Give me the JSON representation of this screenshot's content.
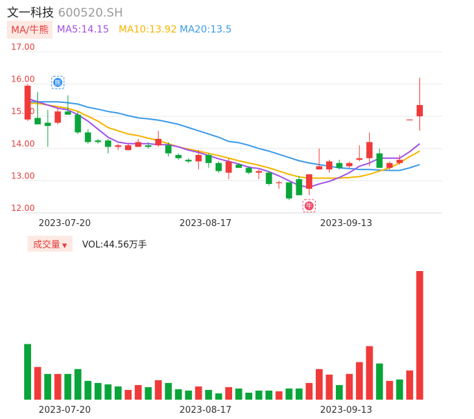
{
  "header": {
    "name": "文一科技",
    "code": "600520.SH"
  },
  "ma_bar": {
    "tag": "MA/牛熊",
    "ma5": "MA5:14.15",
    "ma10": "MA10:13.92",
    "ma20": "MA20:13.5"
  },
  "volume_bar": {
    "tag": "成交量",
    "label": "VOL:44.56万手"
  },
  "markers": {
    "bear": "熊",
    "bull": "牛"
  },
  "colors": {
    "up": "#f03a3a",
    "down": "#0aa53a",
    "ma5": "#a050e8",
    "ma10": "#f5b400",
    "ma20": "#3d9be9"
  },
  "chart_data": [
    {
      "type": "candlestick",
      "ylim": [
        12.0,
        17.0
      ],
      "yticks": [
        "17.00",
        "16.00",
        "15.00",
        "14.00",
        "13.00",
        "12.00"
      ],
      "xticks": [
        {
          "index": 3,
          "label": "2023-07-20"
        },
        {
          "index": 17,
          "label": "2023-08-17"
        },
        {
          "index": 31,
          "label": "2023-09-13"
        }
      ],
      "candles": [
        {
          "o": 14.9,
          "h": 16.0,
          "l": 14.85,
          "c": 15.95
        },
        {
          "o": 14.95,
          "h": 15.75,
          "l": 14.75,
          "c": 14.75
        },
        {
          "o": 14.8,
          "h": 15.2,
          "l": 14.05,
          "c": 14.7
        },
        {
          "o": 14.8,
          "h": 15.25,
          "l": 14.75,
          "c": 15.15
        },
        {
          "o": 15.15,
          "h": 15.65,
          "l": 15.05,
          "c": 15.05
        },
        {
          "o": 15.05,
          "h": 15.15,
          "l": 14.45,
          "c": 14.5
        },
        {
          "o": 14.5,
          "h": 14.6,
          "l": 14.15,
          "c": 14.2
        },
        {
          "o": 14.25,
          "h": 14.3,
          "l": 14.15,
          "c": 14.2
        },
        {
          "o": 14.25,
          "h": 14.3,
          "l": 13.85,
          "c": 14.05
        },
        {
          "o": 14.05,
          "h": 14.15,
          "l": 13.95,
          "c": 14.1
        },
        {
          "o": 13.95,
          "h": 14.15,
          "l": 13.95,
          "c": 14.1
        },
        {
          "o": 14.05,
          "h": 14.3,
          "l": 14.05,
          "c": 14.2
        },
        {
          "o": 14.1,
          "h": 14.2,
          "l": 14.0,
          "c": 14.05
        },
        {
          "o": 14.1,
          "h": 14.55,
          "l": 14.05,
          "c": 14.3
        },
        {
          "o": 14.1,
          "h": 14.2,
          "l": 13.75,
          "c": 13.85
        },
        {
          "o": 13.8,
          "h": 13.85,
          "l": 13.65,
          "c": 13.7
        },
        {
          "o": 13.65,
          "h": 13.7,
          "l": 13.55,
          "c": 13.6
        },
        {
          "o": 13.6,
          "h": 13.95,
          "l": 13.35,
          "c": 13.8
        },
        {
          "o": 13.8,
          "h": 13.85,
          "l": 13.4,
          "c": 13.55
        },
        {
          "o": 13.55,
          "h": 13.6,
          "l": 13.25,
          "c": 13.3
        },
        {
          "o": 13.25,
          "h": 13.7,
          "l": 13.05,
          "c": 13.6
        },
        {
          "o": 13.5,
          "h": 13.55,
          "l": 13.4,
          "c": 13.4
        },
        {
          "o": 13.4,
          "h": 13.45,
          "l": 13.2,
          "c": 13.25
        },
        {
          "o": 13.25,
          "h": 13.35,
          "l": 13.05,
          "c": 13.3
        },
        {
          "o": 13.25,
          "h": 13.3,
          "l": 12.85,
          "c": 12.9
        },
        {
          "o": 12.95,
          "h": 13.0,
          "l": 12.75,
          "c": 12.95
        },
        {
          "o": 12.95,
          "h": 12.95,
          "l": 12.4,
          "c": 12.45
        },
        {
          "o": 13.05,
          "h": 13.15,
          "l": 12.55,
          "c": 12.55
        },
        {
          "o": 12.75,
          "h": 13.2,
          "l": 12.55,
          "c": 13.2
        },
        {
          "o": 13.35,
          "h": 14.0,
          "l": 13.35,
          "c": 13.45
        },
        {
          "o": 13.35,
          "h": 13.65,
          "l": 13.25,
          "c": 13.6
        },
        {
          "o": 13.55,
          "h": 13.65,
          "l": 13.35,
          "c": 13.4
        },
        {
          "o": 13.45,
          "h": 13.6,
          "l": 13.4,
          "c": 13.55
        },
        {
          "o": 13.65,
          "h": 14.1,
          "l": 13.6,
          "c": 13.7
        },
        {
          "o": 13.7,
          "h": 14.5,
          "l": 13.45,
          "c": 14.2
        },
        {
          "o": 13.85,
          "h": 14.0,
          "l": 13.4,
          "c": 13.4
        },
        {
          "o": 13.4,
          "h": 13.6,
          "l": 13.35,
          "c": 13.55
        },
        {
          "o": 13.55,
          "h": 13.8,
          "l": 13.5,
          "c": 13.65
        },
        {
          "o": 14.9,
          "h": 14.9,
          "l": 14.9,
          "c": 14.9
        },
        {
          "o": 15.0,
          "h": 16.2,
          "l": 14.55,
          "c": 15.35
        }
      ],
      "ma5": [
        15.55,
        15.45,
        15.35,
        15.25,
        15.2,
        15.05,
        14.85,
        14.6,
        14.35,
        14.2,
        14.15,
        14.15,
        14.15,
        14.12,
        14.12,
        14.05,
        13.95,
        13.88,
        13.78,
        13.68,
        13.6,
        13.52,
        13.42,
        13.38,
        13.28,
        13.15,
        13.0,
        12.85,
        12.8,
        12.9,
        12.98,
        13.1,
        13.25,
        13.45,
        13.55,
        13.7,
        13.7,
        13.7,
        13.9,
        14.15
      ],
      "ma10": [
        15.4,
        15.4,
        15.35,
        15.3,
        15.25,
        15.15,
        15.0,
        14.85,
        14.65,
        14.55,
        14.45,
        14.4,
        14.32,
        14.25,
        14.15,
        14.05,
        13.98,
        13.92,
        13.85,
        13.78,
        13.7,
        13.62,
        13.55,
        13.48,
        13.4,
        13.3,
        13.2,
        13.12,
        13.08,
        13.08,
        13.08,
        13.08,
        13.1,
        13.13,
        13.2,
        13.3,
        13.4,
        13.55,
        13.75,
        13.92
      ],
      "ma20": [
        15.45,
        15.45,
        15.45,
        15.45,
        15.42,
        15.38,
        15.28,
        15.22,
        15.15,
        15.1,
        15.02,
        14.95,
        14.92,
        14.88,
        14.82,
        14.75,
        14.65,
        14.55,
        14.45,
        14.35,
        14.22,
        14.18,
        14.1,
        14.0,
        13.92,
        13.82,
        13.72,
        13.62,
        13.55,
        13.5,
        13.45,
        13.4,
        13.38,
        13.35,
        13.35,
        13.33,
        13.32,
        13.32,
        13.4,
        13.5
      ],
      "markers": [
        {
          "index": 3,
          "price": 16.05,
          "kind": "bear"
        },
        {
          "index": 28,
          "price": 12.22,
          "kind": "bull"
        }
      ]
    },
    {
      "type": "bar",
      "title": "成交量",
      "values": [
        80,
        47,
        37,
        37,
        37,
        44,
        27,
        24,
        22,
        19,
        14,
        21,
        18,
        28,
        24,
        15,
        13,
        19,
        14,
        9,
        18,
        16,
        10,
        13,
        13,
        12,
        16,
        16,
        24,
        44,
        36,
        21,
        37,
        54,
        77,
        52,
        27,
        29,
        42,
        185
      ],
      "directions": [
        "down",
        "up",
        "down",
        "up",
        "down",
        "down",
        "down",
        "down",
        "down",
        "down",
        "up",
        "up",
        "down",
        "up",
        "down",
        "down",
        "down",
        "up",
        "down",
        "down",
        "up",
        "down",
        "down",
        "down",
        "down",
        "up",
        "down",
        "down",
        "up",
        "up",
        "up",
        "down",
        "up",
        "up",
        "up",
        "down",
        "up",
        "down",
        "up",
        "up"
      ],
      "xticks": [
        {
          "index": 3,
          "label": "2023-07-20"
        },
        {
          "index": 17,
          "label": "2023-08-17"
        },
        {
          "index": 31,
          "label": "2023-09-13"
        }
      ]
    }
  ]
}
